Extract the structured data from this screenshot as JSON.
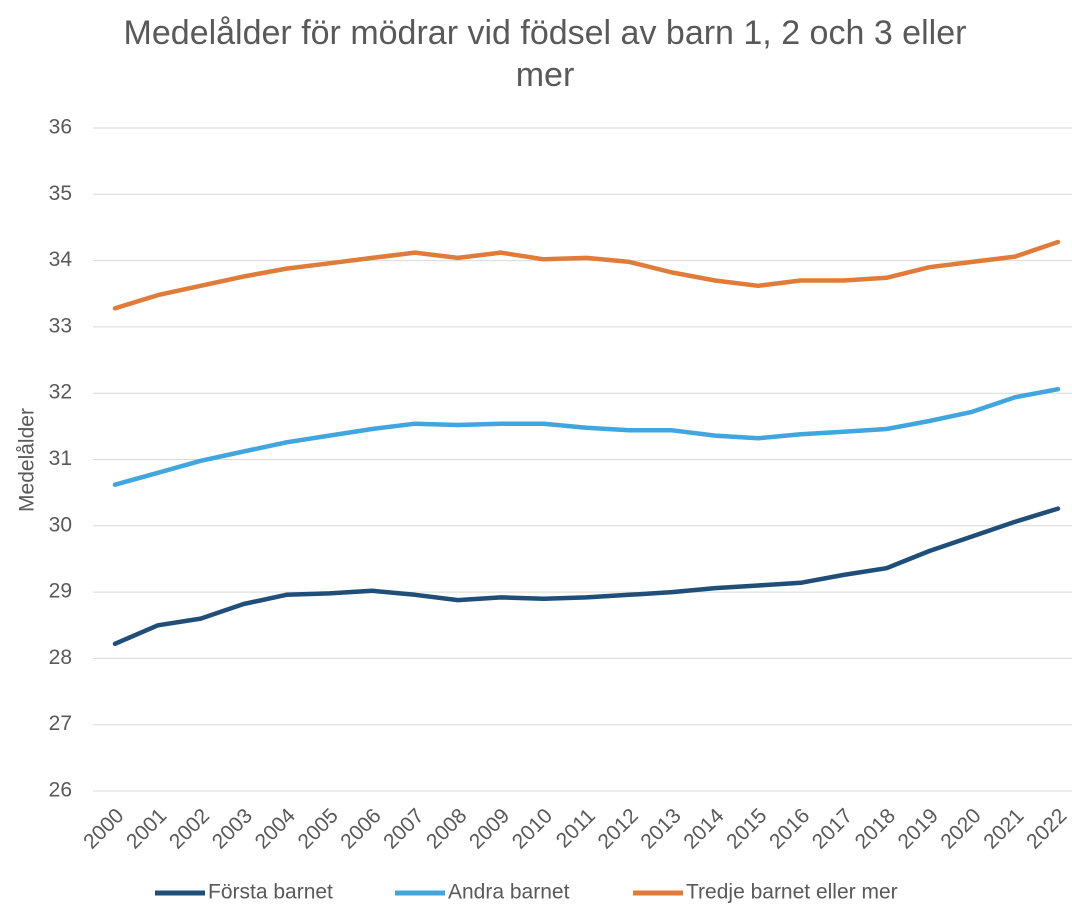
{
  "chart_data": {
    "type": "line",
    "title": "Medelålder för mödrar vid födsel av barn 1, 2 och 3 eller mer",
    "y_label": "Medelålder",
    "categories": [
      "2000",
      "2001",
      "2002",
      "2003",
      "2004",
      "2005",
      "2006",
      "2007",
      "2008",
      "2009",
      "2010",
      "2011",
      "2012",
      "2013",
      "2014",
      "2015",
      "2016",
      "2017",
      "2018",
      "2019",
      "2020",
      "2021",
      "2022"
    ],
    "series": [
      {
        "name": "Första barnet",
        "color": "#1f4e79",
        "values": [
          28.22,
          28.5,
          28.6,
          28.82,
          28.96,
          28.98,
          29.02,
          28.96,
          28.88,
          28.92,
          28.9,
          28.92,
          28.96,
          29.0,
          29.06,
          29.1,
          29.14,
          29.26,
          29.36,
          29.62,
          29.84,
          30.06,
          30.26
        ]
      },
      {
        "name": "Andra barnet",
        "color": "#41a5de",
        "values": [
          30.62,
          30.8,
          30.98,
          31.12,
          31.26,
          31.36,
          31.46,
          31.54,
          31.52,
          31.54,
          31.54,
          31.48,
          31.44,
          31.44,
          31.36,
          31.32,
          31.38,
          31.42,
          31.46,
          31.58,
          31.72,
          31.94,
          32.06
        ]
      },
      {
        "name": "Tredje barnet eller mer",
        "color": "#e07b39",
        "values": [
          33.28,
          33.48,
          33.62,
          33.76,
          33.88,
          33.96,
          34.04,
          34.12,
          34.04,
          34.12,
          34.02,
          34.04,
          33.98,
          33.82,
          33.7,
          33.62,
          33.7,
          33.7,
          33.74,
          33.9,
          33.98,
          34.06,
          34.28
        ]
      }
    ],
    "ylim": [
      26,
      36
    ],
    "yticks": [
      26,
      27,
      28,
      29,
      30,
      31,
      32,
      33,
      34,
      35,
      36
    ],
    "grid": true,
    "legend": "bottom"
  }
}
